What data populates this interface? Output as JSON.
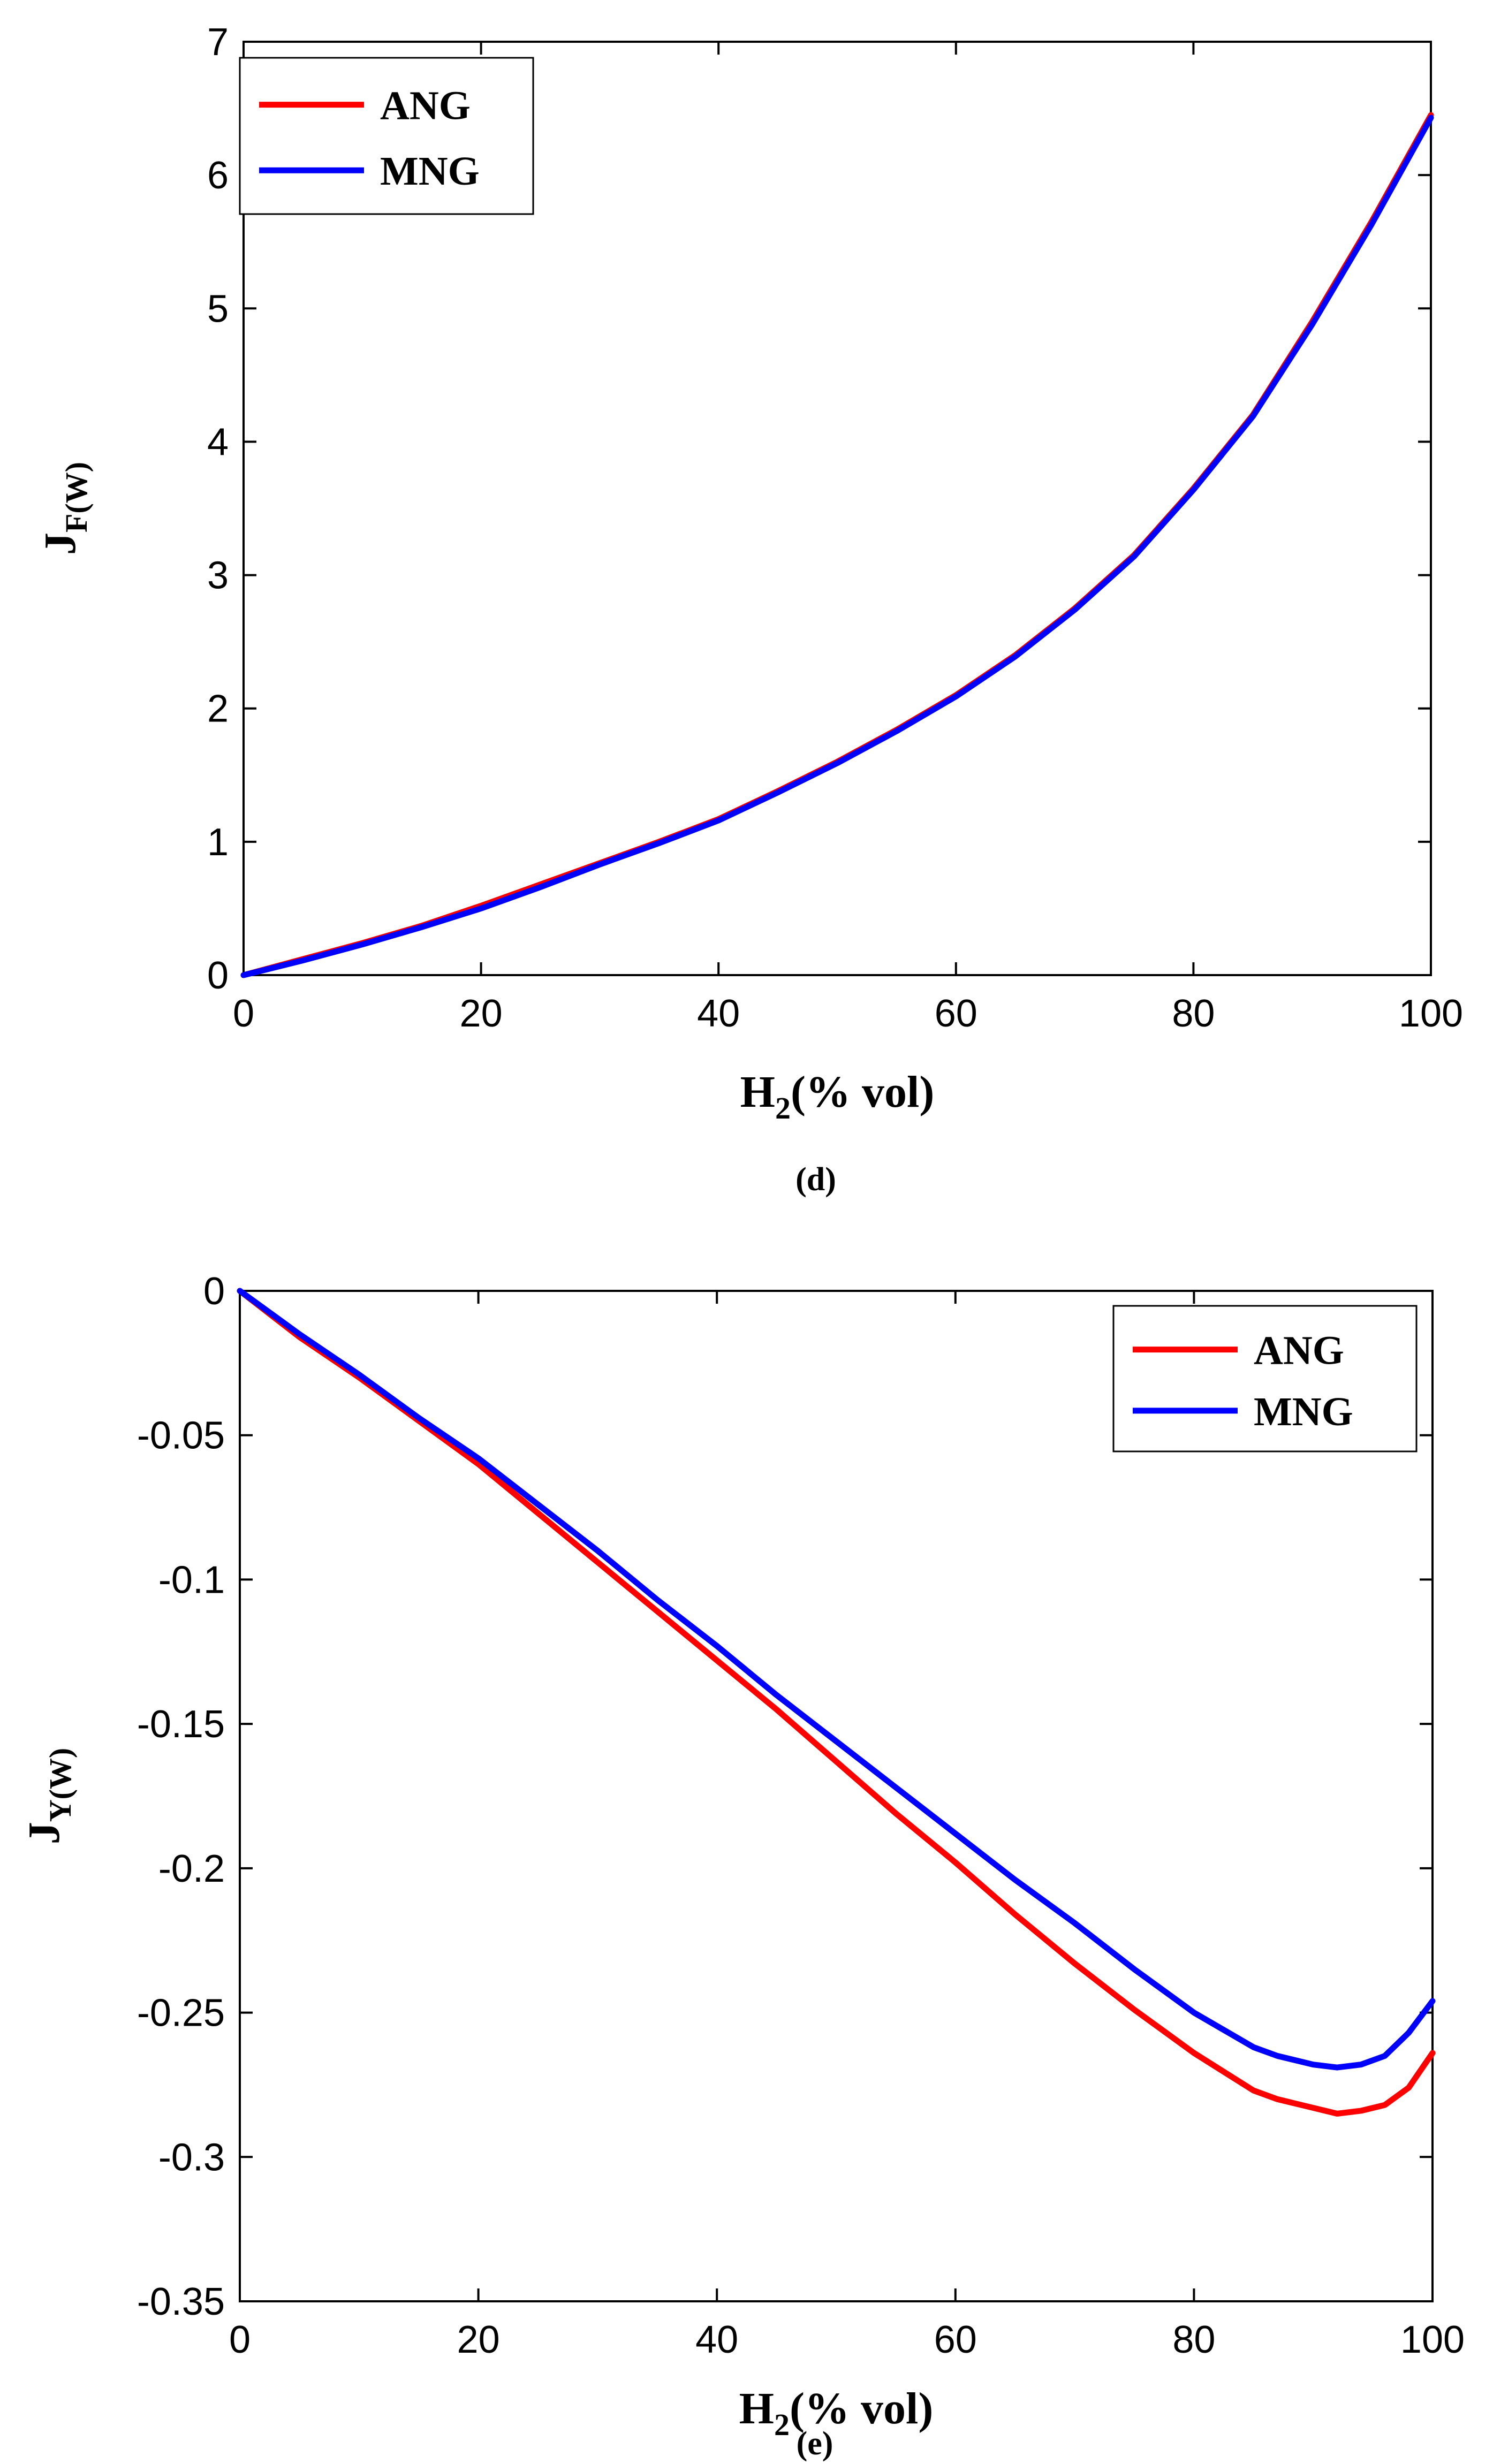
{
  "chart_data": [
    {
      "id": "d",
      "type": "line",
      "caption": "(d)",
      "xlabel": {
        "main": "H",
        "sub": "2",
        "rest": "(% vol)"
      },
      "ylabel": {
        "main": "J",
        "sub": "F(W)"
      },
      "xlim": [
        0,
        100
      ],
      "ylim": [
        0,
        7
      ],
      "xticks": [
        0,
        20,
        40,
        60,
        80,
        100
      ],
      "yticks": [
        0,
        1,
        2,
        3,
        4,
        5,
        6,
        7
      ],
      "ytick_labels": [
        "0",
        "1",
        "2",
        "3",
        "4",
        "5",
        "6",
        "7"
      ],
      "grid": false,
      "legend_position": "top-left",
      "series": [
        {
          "name": "ANG",
          "color": "#ff0000",
          "x": [
            0,
            5,
            10,
            15,
            20,
            25,
            30,
            35,
            40,
            45,
            50,
            55,
            60,
            65,
            70,
            75,
            80,
            85,
            90,
            95,
            100
          ],
          "y": [
            0,
            0.12,
            0.24,
            0.37,
            0.52,
            0.68,
            0.84,
            1.0,
            1.17,
            1.38,
            1.6,
            1.84,
            2.1,
            2.4,
            2.75,
            3.15,
            3.65,
            4.2,
            4.9,
            5.65,
            6.45
          ]
        },
        {
          "name": "MNG",
          "color": "#0000ff",
          "x": [
            0,
            5,
            10,
            15,
            20,
            25,
            30,
            35,
            40,
            45,
            50,
            55,
            60,
            65,
            70,
            75,
            80,
            85,
            90,
            95,
            100
          ],
          "y": [
            0,
            0.11,
            0.23,
            0.36,
            0.5,
            0.66,
            0.83,
            0.99,
            1.16,
            1.37,
            1.59,
            1.83,
            2.09,
            2.39,
            2.74,
            3.14,
            3.64,
            4.19,
            4.88,
            5.63,
            6.43
          ]
        }
      ]
    },
    {
      "id": "e",
      "type": "line",
      "caption": "(e)",
      "xlabel": {
        "main": "H",
        "sub": "2",
        "rest": "(% vol)"
      },
      "ylabel": {
        "main": "J",
        "sub": "Y(W)"
      },
      "xlim": [
        0,
        100
      ],
      "ylim": [
        -0.35,
        0
      ],
      "xticks": [
        0,
        20,
        40,
        60,
        80,
        100
      ],
      "yticks": [
        0,
        -0.05,
        -0.1,
        -0.15,
        -0.2,
        -0.25,
        -0.3,
        -0.35
      ],
      "ytick_labels": [
        "0",
        "-0.05",
        "-0.1",
        "-0.15",
        "-0.2",
        "-0.25",
        "-0.3",
        "-0.35"
      ],
      "grid": false,
      "legend_position": "top-right",
      "series": [
        {
          "name": "ANG",
          "color": "#ff0000",
          "x": [
            0,
            5,
            10,
            15,
            20,
            25,
            30,
            35,
            40,
            45,
            50,
            55,
            60,
            65,
            70,
            75,
            80,
            85,
            87,
            90,
            92,
            94,
            96,
            98,
            100
          ],
          "y": [
            0,
            -0.016,
            -0.03,
            -0.045,
            -0.06,
            -0.077,
            -0.094,
            -0.111,
            -0.128,
            -0.145,
            -0.163,
            -0.181,
            -0.198,
            -0.216,
            -0.233,
            -0.249,
            -0.264,
            -0.277,
            -0.28,
            -0.283,
            -0.285,
            -0.284,
            -0.282,
            -0.276,
            -0.264
          ]
        },
        {
          "name": "MNG",
          "color": "#0000ff",
          "x": [
            0,
            5,
            10,
            15,
            20,
            25,
            30,
            35,
            40,
            45,
            50,
            55,
            60,
            65,
            70,
            75,
            80,
            85,
            87,
            90,
            92,
            94,
            96,
            98,
            100
          ],
          "y": [
            0,
            -0.015,
            -0.029,
            -0.044,
            -0.058,
            -0.074,
            -0.09,
            -0.107,
            -0.123,
            -0.14,
            -0.156,
            -0.172,
            -0.188,
            -0.204,
            -0.219,
            -0.235,
            -0.25,
            -0.262,
            -0.265,
            -0.268,
            -0.269,
            -0.268,
            -0.265,
            -0.257,
            -0.246
          ]
        }
      ]
    }
  ]
}
